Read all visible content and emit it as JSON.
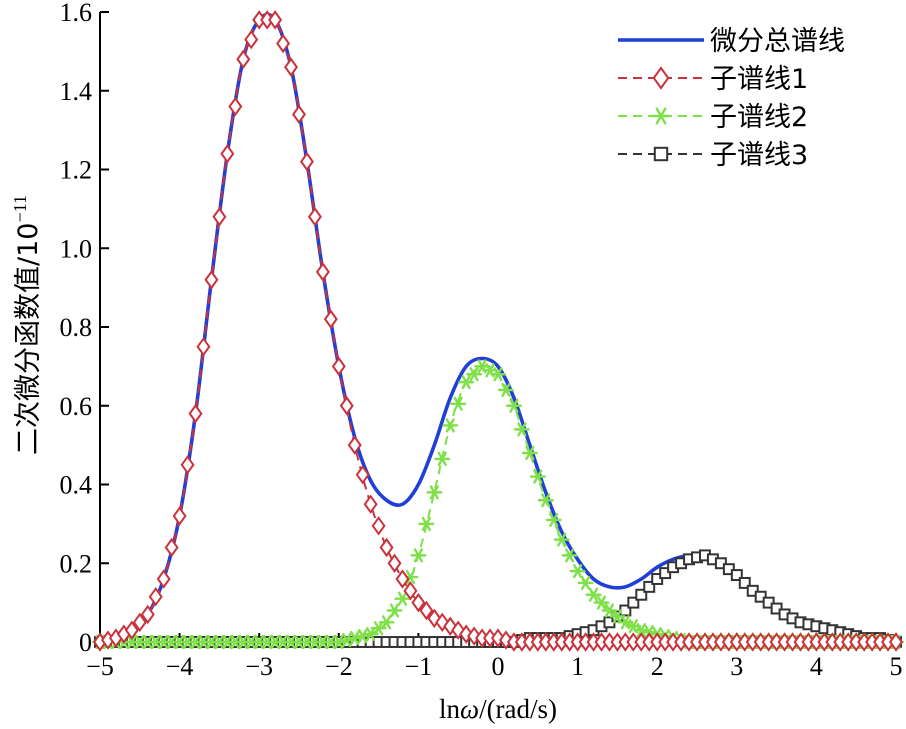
{
  "chart_data": {
    "type": "line",
    "title": "",
    "xlabel_prefix": "ln",
    "xlabel_omega": "ω",
    "xlabel_suffix": "/(rad/s)",
    "ylabel_text": "二次微分函数值/10",
    "ylabel_exponent": "−11",
    "xlim": [
      -5,
      5
    ],
    "ylim": [
      0,
      1.6
    ],
    "xticks": [
      -5,
      -4,
      -3,
      -2,
      -1,
      0,
      1,
      2,
      3,
      4,
      5
    ],
    "xtick_labels": [
      "−5",
      "−4",
      "−3",
      "−2",
      "−1",
      "0",
      "1",
      "2",
      "3",
      "4",
      "5"
    ],
    "yticks": [
      0,
      0.2,
      0.4,
      0.6,
      0.8,
      1.0,
      1.2,
      1.4,
      1.6
    ],
    "ytick_labels": [
      "0",
      "0.2",
      "0.4",
      "0.6",
      "0.8",
      "1.0",
      "1.2",
      "1.4",
      "1.6"
    ],
    "grid": false,
    "legend_position": "top-right",
    "x": [
      -5.0,
      -4.8,
      -4.6,
      -4.4,
      -4.2,
      -4.0,
      -3.8,
      -3.6,
      -3.4,
      -3.2,
      -3.0,
      -2.8,
      -2.6,
      -2.4,
      -2.2,
      -2.0,
      -1.8,
      -1.6,
      -1.4,
      -1.2,
      -1.0,
      -0.8,
      -0.6,
      -0.4,
      -0.2,
      0.0,
      0.2,
      0.4,
      0.6,
      0.8,
      1.0,
      1.2,
      1.4,
      1.6,
      1.8,
      2.0,
      2.2,
      2.4,
      2.6,
      2.8,
      3.0,
      3.2,
      3.4,
      3.6,
      3.8,
      4.0,
      4.2,
      4.4,
      4.6,
      4.8,
      5.0
    ],
    "series": [
      {
        "name": "微分总谱线",
        "color": "#1f3fd8",
        "style": "solid",
        "marker": "none",
        "values": [
          0.0,
          0.01,
          0.03,
          0.07,
          0.16,
          0.32,
          0.58,
          0.92,
          1.24,
          1.48,
          1.58,
          1.58,
          1.46,
          1.22,
          0.94,
          0.7,
          0.52,
          0.41,
          0.36,
          0.35,
          0.4,
          0.5,
          0.62,
          0.7,
          0.72,
          0.7,
          0.62,
          0.5,
          0.38,
          0.28,
          0.21,
          0.16,
          0.14,
          0.14,
          0.16,
          0.19,
          0.21,
          0.22,
          0.22,
          0.2,
          0.17,
          0.13,
          0.1,
          0.07,
          0.05,
          0.04,
          0.03,
          0.02,
          0.01,
          0.01,
          0.0
        ]
      },
      {
        "name": "子谱线1",
        "color": "#c9333d",
        "style": "dashed",
        "marker": "diamond",
        "values": [
          0.0,
          0.01,
          0.03,
          0.07,
          0.16,
          0.32,
          0.58,
          0.92,
          1.24,
          1.48,
          1.58,
          1.58,
          1.46,
          1.22,
          0.94,
          0.7,
          0.5,
          0.35,
          0.24,
          0.16,
          0.1,
          0.06,
          0.04,
          0.02,
          0.01,
          0.01,
          0.0,
          0.0,
          0.0,
          0.0,
          0.0,
          0.0,
          0.0,
          0.0,
          0.0,
          0.0,
          0.0,
          0.0,
          0.0,
          0.0,
          0.0,
          0.0,
          0.0,
          0.0,
          0.0,
          0.0,
          0.0,
          0.0,
          0.0,
          0.0,
          0.0
        ]
      },
      {
        "name": "子谱线2",
        "color": "#7fe04a",
        "style": "dashed",
        "marker": "asterisk",
        "values": [
          0.0,
          0.0,
          0.0,
          0.0,
          0.0,
          0.0,
          0.0,
          0.0,
          0.0,
          0.0,
          0.0,
          0.0,
          0.0,
          0.0,
          0.0,
          0.0,
          0.01,
          0.02,
          0.05,
          0.11,
          0.22,
          0.38,
          0.55,
          0.66,
          0.7,
          0.68,
          0.6,
          0.48,
          0.36,
          0.26,
          0.18,
          0.12,
          0.08,
          0.05,
          0.03,
          0.02,
          0.01,
          0.0,
          0.0,
          0.0,
          0.0,
          0.0,
          0.0,
          0.0,
          0.0,
          0.0,
          0.0,
          0.0,
          0.0,
          0.0,
          0.0
        ]
      },
      {
        "name": "子谱线3",
        "color": "#333333",
        "style": "dashed",
        "marker": "square",
        "values": [
          0.0,
          0.0,
          0.0,
          0.0,
          0.0,
          0.0,
          0.0,
          0.0,
          0.0,
          0.0,
          0.0,
          0.0,
          0.0,
          0.0,
          0.0,
          0.0,
          0.0,
          0.0,
          0.0,
          0.0,
          0.0,
          0.0,
          0.0,
          0.0,
          0.0,
          0.0,
          0.0,
          0.01,
          0.01,
          0.01,
          0.02,
          0.03,
          0.05,
          0.08,
          0.12,
          0.16,
          0.19,
          0.21,
          0.22,
          0.2,
          0.17,
          0.13,
          0.1,
          0.07,
          0.05,
          0.04,
          0.03,
          0.02,
          0.01,
          0.01,
          0.0
        ]
      }
    ]
  }
}
